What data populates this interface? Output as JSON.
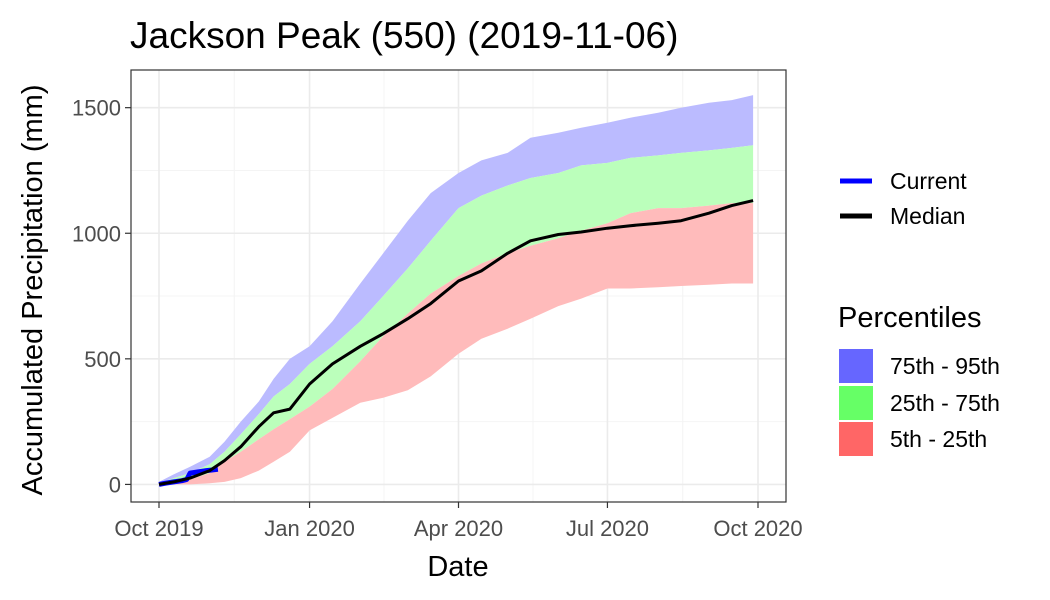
{
  "chart_data": {
    "type": "area",
    "title": "Jackson Peak (550) (2019-11-06)",
    "xlabel": "Date",
    "ylabel": "Accumulated Precipitation (mm)",
    "x_range": [
      "2019-10-01",
      "2020-10-01"
    ],
    "ylim": [
      0,
      1600
    ],
    "y_ticks": [
      0,
      500,
      1000,
      1500
    ],
    "x_ticks": [
      {
        "date": "2019-10-01",
        "label": "Oct 2019"
      },
      {
        "date": "2020-01-01",
        "label": "Jan 2020"
      },
      {
        "date": "2020-04-01",
        "label": "Apr 2020"
      },
      {
        "date": "2020-07-01",
        "label": "Jul 2020"
      },
      {
        "date": "2020-10-01",
        "label": "Oct 2020"
      }
    ],
    "grid": true,
    "legend_position": "right",
    "percentile_bands": {
      "dates": [
        "2019-10-01",
        "2019-10-10",
        "2019-10-20",
        "2019-11-01",
        "2019-11-10",
        "2019-11-20",
        "2019-12-01",
        "2019-12-10",
        "2019-12-20",
        "2020-01-01",
        "2020-01-15",
        "2020-02-01",
        "2020-02-15",
        "2020-03-01",
        "2020-03-15",
        "2020-04-01",
        "2020-04-15",
        "2020-05-01",
        "2020-05-15",
        "2020-06-01",
        "2020-06-15",
        "2020-07-01",
        "2020-07-15",
        "2020-08-01",
        "2020-08-15",
        "2020-09-01",
        "2020-09-15",
        "2020-09-28"
      ],
      "p5": [
        0,
        0,
        0,
        5,
        10,
        25,
        55,
        90,
        130,
        215,
        265,
        325,
        345,
        375,
        430,
        520,
        580,
        620,
        660,
        710,
        740,
        780,
        780,
        785,
        790,
        795,
        800,
        800
      ],
      "p25": [
        0,
        10,
        20,
        45,
        90,
        130,
        180,
        220,
        260,
        310,
        380,
        490,
        590,
        680,
        760,
        830,
        880,
        920,
        950,
        980,
        1010,
        1040,
        1080,
        1100,
        1100,
        1110,
        1120,
        1120
      ],
      "p75": [
        5,
        25,
        45,
        80,
        130,
        200,
        280,
        350,
        400,
        480,
        550,
        650,
        750,
        860,
        970,
        1100,
        1150,
        1190,
        1220,
        1240,
        1270,
        1280,
        1300,
        1310,
        1320,
        1330,
        1340,
        1350
      ],
      "p95": [
        10,
        40,
        70,
        110,
        170,
        250,
        330,
        420,
        500,
        550,
        650,
        800,
        920,
        1050,
        1160,
        1240,
        1290,
        1320,
        1380,
        1400,
        1420,
        1440,
        1460,
        1480,
        1500,
        1520,
        1530,
        1550
      ]
    },
    "series": [
      {
        "name": "Median",
        "color": "#000000",
        "dates": [
          "2019-10-01",
          "2019-10-10",
          "2019-10-20",
          "2019-11-01",
          "2019-11-10",
          "2019-11-20",
          "2019-12-01",
          "2019-12-10",
          "2019-12-20",
          "2020-01-01",
          "2020-01-15",
          "2020-02-01",
          "2020-02-15",
          "2020-03-01",
          "2020-03-15",
          "2020-04-01",
          "2020-04-15",
          "2020-05-01",
          "2020-05-15",
          "2020-06-01",
          "2020-06-15",
          "2020-07-01",
          "2020-07-15",
          "2020-08-01",
          "2020-08-15",
          "2020-09-01",
          "2020-09-15",
          "2020-09-28"
        ],
        "values": [
          0,
          10,
          25,
          55,
          95,
          150,
          230,
          285,
          300,
          400,
          480,
          550,
          600,
          660,
          720,
          810,
          850,
          920,
          970,
          995,
          1005,
          1020,
          1030,
          1040,
          1050,
          1080,
          1110,
          1130
        ]
      },
      {
        "name": "Current",
        "color": "#0000ff",
        "dates": [
          "2019-10-01",
          "2019-10-05",
          "2019-10-10",
          "2019-10-15",
          "2019-10-18",
          "2019-10-20",
          "2019-10-25",
          "2019-10-30",
          "2019-11-06"
        ],
        "values": [
          0,
          5,
          10,
          15,
          20,
          45,
          50,
          55,
          60
        ]
      }
    ],
    "legend": {
      "lines": [
        {
          "label": "Current",
          "color": "#0000ff"
        },
        {
          "label": "Median",
          "color": "#000000"
        }
      ],
      "percentiles_title": "Percentiles",
      "bands": [
        {
          "label": "75th - 95th",
          "color": "#6666ff"
        },
        {
          "label": "25th - 75th",
          "color": "#66ff66"
        },
        {
          "label": "5th - 25th",
          "color": "#ff6666"
        }
      ]
    },
    "band_fill_colors": {
      "p75_p95": "#bbbbff",
      "p25_p75": "#bbffbb",
      "p5_p25": "#ffbbbb"
    }
  }
}
